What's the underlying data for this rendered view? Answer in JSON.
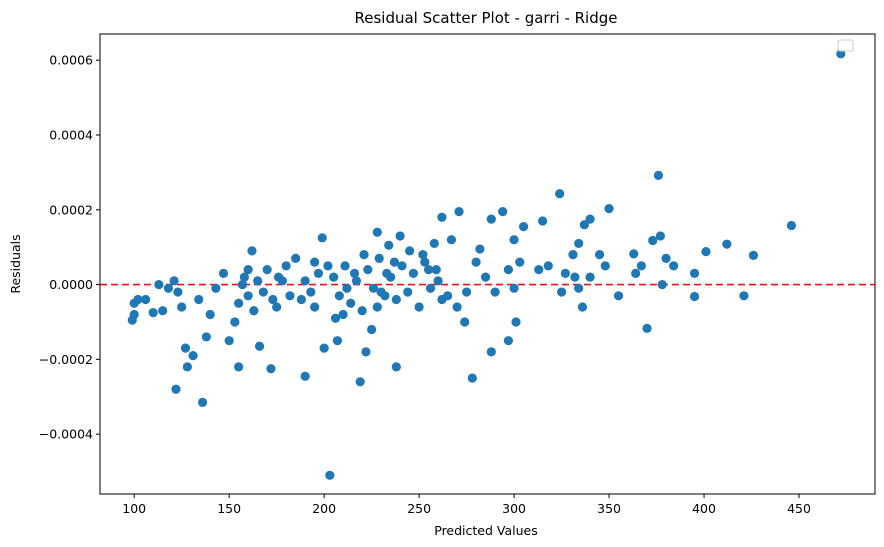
{
  "chart_data": {
    "type": "scatter",
    "title": "Residual Scatter Plot - garri  - Ridge",
    "xlabel": "Predicted Values",
    "ylabel": "Residuals",
    "xlim": [
      82,
      490
    ],
    "ylim": [
      -0.00056,
      0.00067
    ],
    "x_ticks": [
      100,
      150,
      200,
      250,
      300,
      350,
      400,
      450
    ],
    "x_tick_labels": [
      "100",
      "150",
      "200",
      "250",
      "300",
      "350",
      "400",
      "450"
    ],
    "y_ticks": [
      -0.0004,
      -0.0002,
      0.0,
      0.0002,
      0.0004,
      0.0006
    ],
    "y_tick_labels": [
      "−0.0004",
      "−0.0002",
      "0.0000",
      "0.0002",
      "0.0004",
      "0.0006"
    ],
    "grid": false,
    "legend": "top-right (empty)",
    "reference_line": {
      "y": 0.0,
      "style": "dashed",
      "color": "#e8141e"
    },
    "marker_color": "#1f77b4",
    "points": [
      [
        472,
        0.000617
      ],
      [
        376,
        0.000292
      ],
      [
        446,
        0.000158
      ],
      [
        324,
        0.000243
      ],
      [
        350,
        0.000203
      ],
      [
        426,
        7.8e-05
      ],
      [
        412,
        0.000108
      ],
      [
        401,
        8.8e-05
      ],
      [
        395,
        3e-05
      ],
      [
        395,
        -3.2e-05
      ],
      [
        421,
        -3e-05
      ],
      [
        380,
        7e-05
      ],
      [
        384,
        5e-05
      ],
      [
        377,
        0.00013
      ],
      [
        373,
        0.000118
      ],
      [
        370,
        -0.000117
      ],
      [
        378,
        0.0
      ],
      [
        363,
        8.2e-05
      ],
      [
        364,
        3e-05
      ],
      [
        367,
        5e-05
      ],
      [
        355,
        -3e-05
      ],
      [
        348,
        5e-05
      ],
      [
        345,
        8e-05
      ],
      [
        340,
        0.000175
      ],
      [
        337,
        0.00016
      ],
      [
        334,
        0.00011
      ],
      [
        331,
        8e-05
      ],
      [
        327,
        3e-05
      ],
      [
        325,
        -2e-05
      ],
      [
        334,
        -1e-05
      ],
      [
        336,
        -6e-05
      ],
      [
        332,
        2e-05
      ],
      [
        340,
        2e-05
      ],
      [
        315,
        0.00017
      ],
      [
        318,
        5e-05
      ],
      [
        313,
        4e-05
      ],
      [
        305,
        0.000155
      ],
      [
        300,
        0.00012
      ],
      [
        303,
        6e-05
      ],
      [
        297,
        4e-05
      ],
      [
        300,
        -1e-05
      ],
      [
        301,
        -0.0001
      ],
      [
        297,
        -0.00015
      ],
      [
        294,
        0.000195
      ],
      [
        288,
        0.000175
      ],
      [
        282,
        9.5e-05
      ],
      [
        280,
        6e-05
      ],
      [
        285,
        2e-05
      ],
      [
        290,
        -2e-05
      ],
      [
        288,
        -0.00018
      ],
      [
        278,
        -0.00025
      ],
      [
        274,
        -0.0001
      ],
      [
        271,
        0.000195
      ],
      [
        267,
        0.00012
      ],
      [
        262,
        0.00018
      ],
      [
        258,
        0.00011
      ],
      [
        252,
        8e-05
      ],
      [
        255,
        4e-05
      ],
      [
        260,
        1e-05
      ],
      [
        265,
        -3e-05
      ],
      [
        270,
        -6e-05
      ],
      [
        275,
        -2e-05
      ],
      [
        245,
        9e-05
      ],
      [
        240,
        0.00013
      ],
      [
        237,
        6e-05
      ],
      [
        233,
        3e-05
      ],
      [
        230,
        -2e-05
      ],
      [
        228,
        -6e-05
      ],
      [
        225,
        -0.00012
      ],
      [
        222,
        -0.00018
      ],
      [
        219,
        -0.00026
      ],
      [
        238,
        -0.00022
      ],
      [
        234,
        0.000105
      ],
      [
        228,
        0.00014
      ],
      [
        221,
        8e-05
      ],
      [
        216,
        3e-05
      ],
      [
        212,
        -1e-05
      ],
      [
        210,
        -8e-05
      ],
      [
        207,
        -0.00015
      ],
      [
        203,
        -0.00051
      ],
      [
        200,
        -0.00017
      ],
      [
        199,
        0.000125
      ],
      [
        195,
        6e-05
      ],
      [
        190,
        1e-05
      ],
      [
        188,
        -4e-05
      ],
      [
        190,
        -0.000245
      ],
      [
        180,
        5e-05
      ],
      [
        176,
        2e-05
      ],
      [
        173,
        -4e-05
      ],
      [
        172,
        -0.000225
      ],
      [
        166,
        -0.000165
      ],
      [
        162,
        9e-05
      ],
      [
        160,
        4e-05
      ],
      [
        157,
        0.0
      ],
      [
        155,
        -5e-05
      ],
      [
        153,
        -0.0001
      ],
      [
        155,
        -0.00022
      ],
      [
        150,
        -0.00015
      ],
      [
        147,
        3e-05
      ],
      [
        143,
        -1e-05
      ],
      [
        140,
        -8e-05
      ],
      [
        138,
        -0.00014
      ],
      [
        136,
        -0.000315
      ],
      [
        134,
        -4e-05
      ],
      [
        131,
        -0.00019
      ],
      [
        127,
        -0.00017
      ],
      [
        125,
        -6e-05
      ],
      [
        123,
        -2e-05
      ],
      [
        122,
        -0.00028
      ],
      [
        121,
        1e-05
      ],
      [
        118,
        -1e-05
      ],
      [
        115,
        -7e-05
      ],
      [
        113,
        0.0
      ],
      [
        110,
        -7.5e-05
      ],
      [
        102,
        -4e-05
      ],
      [
        100,
        -8e-05
      ],
      [
        99,
        -9.5e-05
      ],
      [
        100,
        -5e-05
      ],
      [
        106,
        -4e-05
      ],
      [
        128,
        -0.00022
      ],
      [
        205,
        2e-05
      ],
      [
        208,
        -3e-05
      ],
      [
        211,
        5e-05
      ],
      [
        214,
        -5e-05
      ],
      [
        217,
        1e-05
      ],
      [
        220,
        -7e-05
      ],
      [
        223,
        4e-05
      ],
      [
        226,
        -1e-05
      ],
      [
        229,
        7e-05
      ],
      [
        232,
        -3e-05
      ],
      [
        235,
        2e-05
      ],
      [
        238,
        -4e-05
      ],
      [
        241,
        5e-05
      ],
      [
        244,
        -2e-05
      ],
      [
        247,
        3e-05
      ],
      [
        250,
        -6e-05
      ],
      [
        253,
        6e-05
      ],
      [
        256,
        -1e-05
      ],
      [
        259,
        4e-05
      ],
      [
        262,
        -4e-05
      ],
      [
        185,
        7e-05
      ],
      [
        182,
        -3e-05
      ],
      [
        178,
        1e-05
      ],
      [
        175,
        -6e-05
      ],
      [
        170,
        4e-05
      ],
      [
        168,
        -2e-05
      ],
      [
        165,
        1e-05
      ],
      [
        163,
        -7e-05
      ],
      [
        160,
        -3e-05
      ],
      [
        158,
        2e-05
      ],
      [
        195,
        -6e-05
      ],
      [
        197,
        3e-05
      ],
      [
        193,
        -2e-05
      ],
      [
        202,
        5e-05
      ],
      [
        206,
        -9e-05
      ]
    ]
  }
}
